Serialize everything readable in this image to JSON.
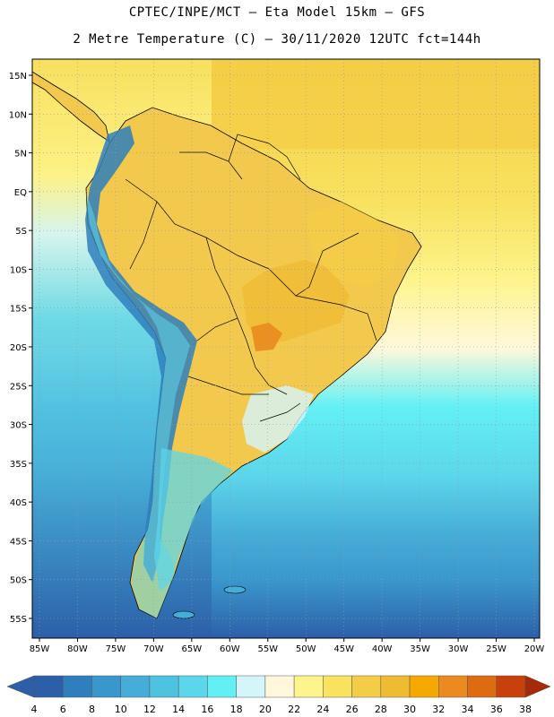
{
  "header": {
    "line1": "CPTEC/INPE/MCT –  Eta Model 15km – GFS",
    "line2": "2 Metre Temperature (C) – 30/11/2020 12UTC fct=144h"
  },
  "map": {
    "lon_labels": [
      "85W",
      "80W",
      "75W",
      "70W",
      "65W",
      "60W",
      "55W",
      "50W",
      "45W",
      "40W",
      "35W",
      "30W",
      "25W",
      "20W"
    ],
    "lat_labels": [
      "15N",
      "10N",
      "5N",
      "EQ",
      "5S",
      "10S",
      "15S",
      "20S",
      "25S",
      "30S",
      "35S",
      "40S",
      "45S",
      "50S",
      "55S"
    ],
    "ocean_color": "#f4d45a",
    "land_color": "#f2c94c"
  },
  "colorbar": {
    "labels": [
      "4",
      "6",
      "8",
      "10",
      "12",
      "14",
      "16",
      "18",
      "20",
      "22",
      "24",
      "26",
      "28",
      "30",
      "32",
      "34",
      "36",
      "38"
    ],
    "colors": [
      "#2c5fa8",
      "#2f7fbd",
      "#3a97cc",
      "#46add8",
      "#4dc3e0",
      "#5cd6ea",
      "#63f0f5",
      "#d4f6fb",
      "#fff8dc",
      "#fdf48b",
      "#f8e260",
      "#f4cd46",
      "#efbb33",
      "#f5a800",
      "#ea8a1f",
      "#dd6b12",
      "#c8400c",
      "#a42a0a"
    ]
  }
}
